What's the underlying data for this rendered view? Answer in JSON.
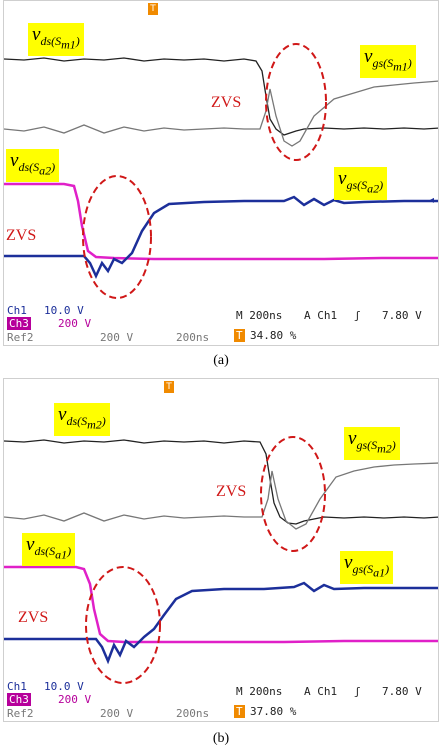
{
  "panels": [
    {
      "caption": "(a)",
      "labels": {
        "vds_top": {
          "base": "v",
          "sub": "ds(S",
          "subsub": "m1",
          "close": ")"
        },
        "vgs_top": {
          "base": "v",
          "sub": "gs(S",
          "subsub": "m1",
          "close": ")"
        },
        "vds_bot": {
          "base": "v",
          "sub": "ds(S",
          "subsub": "a2",
          "close": ")"
        },
        "vgs_bot": {
          "base": "v",
          "sub": "gs(S",
          "subsub": "a2",
          "close": ")"
        }
      },
      "zvs": [
        "ZVS",
        "ZVS"
      ],
      "status": {
        "ch1": "Ch1",
        "ch1_scale": "10.0 V",
        "ch3": "Ch3",
        "ch3_scale": "200 V",
        "ref": "Ref2",
        "ref_scale": "200 V",
        "ref_time": "200ns",
        "timebase": "M 200ns",
        "trig_src": "A  Ch1",
        "trig_level": "7.80 V",
        "percent": "34.80 %"
      }
    },
    {
      "caption": "(b)",
      "labels": {
        "vds_top": {
          "base": "v",
          "sub": "ds(S",
          "subsub": "m2",
          "close": ")"
        },
        "vgs_top": {
          "base": "v",
          "sub": "gs(S",
          "subsub": "m2",
          "close": ")"
        },
        "vds_bot": {
          "base": "v",
          "sub": "ds(S",
          "subsub": "a1",
          "close": ")"
        },
        "vgs_bot": {
          "base": "v",
          "sub": "gs(S",
          "subsub": "a1",
          "close": ")"
        }
      },
      "zvs": [
        "ZVS",
        "ZVS"
      ],
      "status": {
        "ch1": "Ch1",
        "ch1_scale": "10.0 V",
        "ch3": "Ch3",
        "ch3_scale": "200 V",
        "ref": "Ref2",
        "ref_scale": "200 V",
        "ref_time": "200ns",
        "timebase": "M 200ns",
        "trig_src": "A  Ch1",
        "trig_level": "7.80 V",
        "percent": "37.80 %"
      }
    }
  ],
  "colors": {
    "ch1": "#1c2f9a",
    "ch3": "#e020c8",
    "ref_dark": "#222222",
    "ref_grey": "#777777",
    "ellipse": "#d01818",
    "label_bg": "#ffff00",
    "trigger": "#f08a00"
  },
  "icons": [
    "trigger-marker-icon",
    "level-arrow-icon"
  ]
}
